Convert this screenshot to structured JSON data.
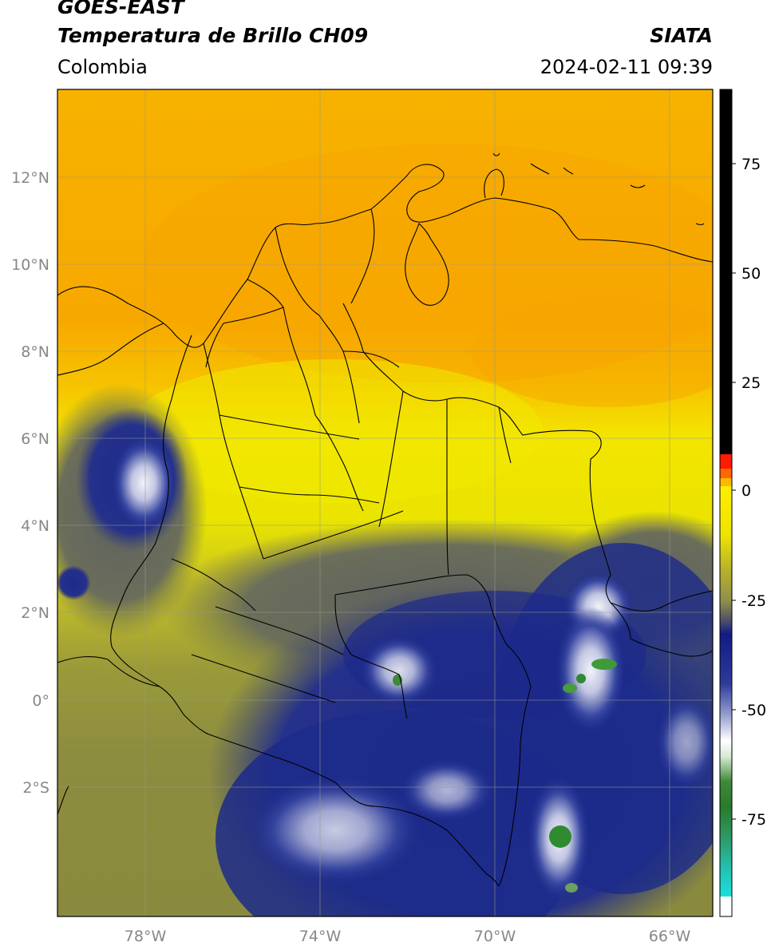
{
  "header": {
    "satellite": "GOES-EAST",
    "product": "Temperatura de Brillo CH09",
    "organization": "SIATA",
    "region": "Colombia",
    "datetime": "2024-02-11 09:39"
  },
  "map": {
    "lat_labels": [
      "12°N",
      "10°N",
      "8°N",
      "6°N",
      "4°N",
      "2°N",
      "0°",
      "2°S"
    ],
    "lon_labels": [
      "78°W",
      "74°W",
      "70°W",
      "66°W"
    ],
    "extent": {
      "lon_min": -80,
      "lon_max": -65,
      "lat_min": -5,
      "lat_max": 14
    },
    "colors": {
      "warm_orange": "#f7b000",
      "yellow": "#f2e800",
      "olive": "#b9b430",
      "grey": "#6d7060",
      "navy": "#1c2a8a",
      "cloud_white": "#e6e8f2",
      "green": "#2f8a30"
    }
  },
  "colorbar": {
    "ticks": [
      "75",
      "50",
      "25",
      "0",
      "-25",
      "-50",
      "-75"
    ],
    "range": [
      -95,
      90
    ],
    "colors": {
      "black": "#000000",
      "red": "#ff1a00",
      "orange": "#ff8a00",
      "yellow": "#ffee00",
      "olive": "#a9a836",
      "navy": "#101c84",
      "white": "#ffffff",
      "green": "#2f7a2a",
      "cyan": "#19d9d3"
    }
  }
}
